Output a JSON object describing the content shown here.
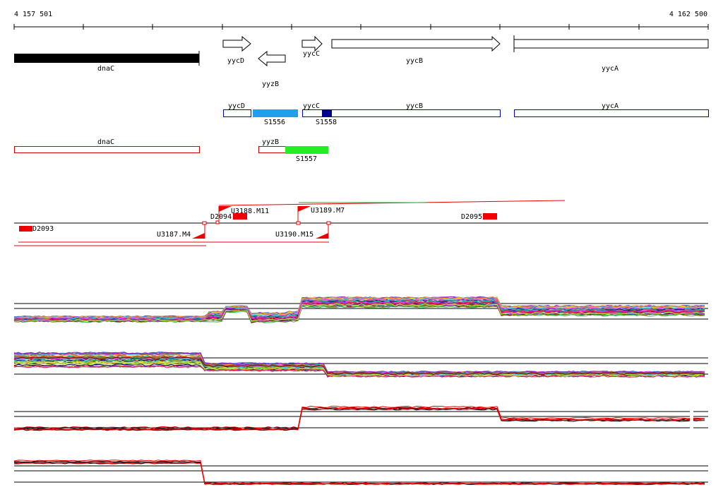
{
  "ruler": {
    "start_label": "4 157 501",
    "end_label": "4 162 500"
  },
  "genes": {
    "dnaC": "dnaC",
    "yycD": "yycD",
    "yyzB": "yyzB",
    "yycC": "yycC",
    "yycB": "yycB",
    "yycA": "yycA"
  },
  "rna_features": {
    "s1556": "S1556",
    "s1558": "S1558",
    "s1557": "S1557"
  },
  "tiling": {
    "d2093": "D2093",
    "d2094": "D2094",
    "d2095": "D2095",
    "u3187": "U3187.M4",
    "u3188": "U3188.M11",
    "u3189": "U3189.M7",
    "u3190": "U3190.M15"
  },
  "colors": {
    "gene_fill": "#000000",
    "forward_outline": "#0000c0",
    "reverse_outline": "#d00000",
    "s1556": "#1ea0f0",
    "s1558": "#00008b",
    "s1557": "#22ee22",
    "profile_red": "#ee0000",
    "profile_dark": "#000000"
  }
}
